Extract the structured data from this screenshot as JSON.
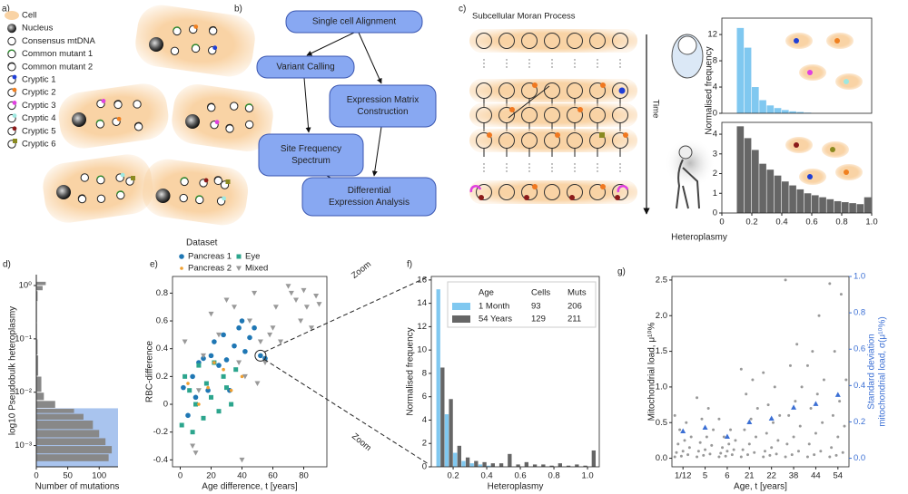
{
  "panel_labels": [
    "a)",
    "b)",
    "c)",
    "d)",
    "e)",
    "f)",
    "g)"
  ],
  "legend_a": {
    "items": [
      {
        "label": "Cell",
        "color": "#f9d3a5"
      },
      {
        "label": "Nucleus",
        "color": "#333333"
      },
      {
        "label": "Consensus mtDNA",
        "color": "#ffffff"
      },
      {
        "label": "Common mutant 1",
        "color": "#2e8b2e"
      },
      {
        "label": "Common mutant 2",
        "color": "#222222"
      },
      {
        "label": "Cryptic 1",
        "color": "#1f3fd6"
      },
      {
        "label": "Cryptic 2",
        "color": "#f08020"
      },
      {
        "label": "Cryptic 3",
        "color": "#e040e0"
      },
      {
        "label": "Cryptic 4",
        "color": "#9fe8e0"
      },
      {
        "label": "Cryptic 5",
        "color": "#8b1a1a"
      },
      {
        "label": "Cryptic 6",
        "color": "#8a8a20"
      }
    ]
  },
  "flowchart_b": {
    "nodes": [
      {
        "lines": [
          "Single cell Alignment"
        ]
      },
      {
        "lines": [
          "Variant Calling"
        ]
      },
      {
        "lines": [
          "Expression Matrix",
          "Construction"
        ]
      },
      {
        "lines": [
          "Site Frequency",
          "Spectrum"
        ]
      },
      {
        "lines": [
          "Differential",
          "Expression Analysis"
        ]
      }
    ]
  },
  "moran_c": {
    "title": "Subcellular Moran Process",
    "time_label": "Time"
  },
  "chart_data": [
    {
      "type": "histogram",
      "color": "#80c8f0",
      "bins": [
        0.1,
        0.15,
        0.2,
        0.25,
        0.3,
        0.35,
        0.4,
        0.45,
        0.5,
        0.55,
        0.6,
        0.65,
        0.7,
        0.75,
        0.8,
        0.85,
        0.9,
        0.95,
        1.0
      ],
      "values": [
        13,
        10,
        4,
        2,
        1.2,
        0.8,
        0.5,
        0.3,
        0.2,
        0.1,
        0,
        0,
        0,
        0,
        0,
        0,
        0,
        0
      ],
      "xlim": [
        0,
        1
      ],
      "ylim": [
        0,
        14.5
      ],
      "yticks": [
        0,
        4,
        8,
        12
      ]
    },
    {
      "type": "histogram",
      "color": "#666666",
      "bins": [
        0.1,
        0.15,
        0.2,
        0.25,
        0.3,
        0.35,
        0.4,
        0.45,
        0.5,
        0.55,
        0.6,
        0.65,
        0.7,
        0.75,
        0.8,
        0.85,
        0.9,
        0.95,
        1.0
      ],
      "values": [
        4.4,
        3.8,
        3.2,
        2.5,
        2.2,
        1.9,
        1.6,
        1.4,
        1.2,
        1.0,
        0.9,
        0.8,
        0.7,
        0.6,
        0.55,
        0.5,
        0.45,
        0.8
      ],
      "xlim": [
        0,
        1
      ],
      "ylim": [
        0,
        4.6
      ],
      "yticks": [
        0,
        1,
        2,
        3,
        4
      ],
      "xticks": [
        0,
        0.2,
        0.4,
        0.6,
        0.8,
        {
          "value": 1,
          "label": "1.0"
        }
      ],
      "xlabel": "Heteroplasmy",
      "ylabel": "Normalised frequency"
    },
    {
      "type": "histogram",
      "orientation": "horizontal",
      "color": "#888888",
      "shade_below": 0.005,
      "shade_color": "#a9c4ee",
      "bins": [
        0.0005,
        0.0007,
        0.001,
        0.0014,
        0.002,
        0.003,
        0.004,
        0.005,
        0.007,
        0.01,
        0.02,
        0.05,
        0.1,
        0.2,
        0.5,
        0.8,
        1.0,
        1.2
      ],
      "values": [
        115,
        120,
        110,
        100,
        90,
        75,
        60,
        30,
        12,
        8,
        3,
        2,
        1,
        1,
        2,
        10,
        15
      ],
      "xlim": [
        0,
        130
      ],
      "xticks": [
        0,
        50,
        100
      ],
      "ylim": [
        0.0004,
        1.6
      ],
      "ylog": true,
      "yticks": [
        {
          "value": 1,
          "label": "10⁰"
        },
        {
          "value": 0.1,
          "label": "10⁻¹"
        },
        {
          "value": 0.01,
          "label": "10⁻²"
        },
        {
          "value": 0.001,
          "label": "10⁻³"
        }
      ],
      "xlabel": "Number of mutations",
      "ylabel": "log10 Pseudobulk heteroplasmy"
    },
    {
      "type": "scatter",
      "legend_title": "Dataset",
      "xlabel": "Age difference, t [years]",
      "ylabel": "RBC-difference",
      "xlim": [
        -5,
        95
      ],
      "ylim": [
        -0.45,
        0.92
      ],
      "xticks": [
        0,
        20,
        40,
        60,
        80
      ],
      "yticks": [
        -0.4,
        -0.2,
        0,
        0.2,
        0.4,
        0.6,
        0.8
      ],
      "annotations": [
        "Zoom",
        "Zoom"
      ],
      "series": [
        {
          "name": "Pancreas 1",
          "color": "#1f77b4",
          "marker": "circle",
          "x": [
            2,
            5,
            8,
            10,
            12,
            15,
            18,
            20,
            22,
            25,
            28,
            30,
            32,
            35,
            38,
            40,
            42,
            45,
            48,
            52,
            55
          ],
          "values": [
            0.12,
            -0.08,
            0.2,
            0.05,
            0.3,
            0.33,
            0.1,
            0.35,
            0.45,
            0.28,
            0.5,
            0.32,
            0.1,
            0.42,
            0.55,
            0.6,
            0.38,
            0.48,
            0.55,
            0.35,
            0.33
          ]
        },
        {
          "name": "Eye",
          "color": "#2ca58d",
          "marker": "square",
          "x": [
            1,
            3,
            6,
            8,
            10,
            12,
            15,
            17,
            20,
            22,
            25,
            28,
            30,
            33,
            36
          ],
          "values": [
            -0.15,
            0.2,
            0.1,
            -0.2,
            0.0,
            0.28,
            -0.1,
            0.15,
            0.05,
            0.3,
            -0.05,
            0.2,
            0.12,
            0.0,
            0.25
          ]
        },
        {
          "name": "Pancreas 2",
          "color": "#f0a030",
          "marker": "dot",
          "x": [
            5,
            12,
            18,
            22,
            28,
            33,
            40
          ],
          "values": [
            0.15,
            0.0,
            0.12,
            0.3,
            0.25,
            0.1,
            0.2
          ]
        },
        {
          "name": "Mixed",
          "color": "#999999",
          "marker": "triangle",
          "x": [
            3,
            8,
            12,
            20,
            25,
            30,
            35,
            38,
            42,
            45,
            48,
            52,
            55,
            60,
            62,
            65,
            70,
            72,
            75,
            78,
            80,
            82,
            85,
            88,
            90,
            10,
            15,
            40,
            50,
            58
          ],
          "values": [
            0.45,
            -0.3,
            0.1,
            0.65,
            0.5,
            0.75,
            0.7,
            0.3,
            0.2,
            0.6,
            0.8,
            0.45,
            0.3,
            0.55,
            0.7,
            0.45,
            0.85,
            0.8,
            0.75,
            0.6,
            0.82,
            0.7,
            0.55,
            0.78,
            0.72,
            -0.35,
            0.35,
            -0.4,
            0.15,
            0.5
          ]
        }
      ]
    },
    {
      "type": "histogram",
      "xlabel": "Heteroplasmy",
      "ylabel": "Normalised frequency",
      "xlim": [
        0.07,
        1.07
      ],
      "ylim": [
        0,
        16.3
      ],
      "xticks": [
        0.2,
        0.4,
        0.6,
        0.8,
        {
          "value": 1,
          "label": "1.0"
        }
      ],
      "yticks": [
        0,
        2,
        4,
        6,
        8,
        10,
        12,
        14,
        16
      ],
      "bins": [
        0.1,
        0.15,
        0.2,
        0.25,
        0.3,
        0.35,
        0.4,
        0.45,
        0.5,
        0.55,
        0.6,
        0.65,
        0.7,
        0.75,
        0.8,
        0.85,
        0.9,
        0.95,
        1.0,
        1.05
      ],
      "legend_headers": [
        "Age",
        "Cells",
        "Muts"
      ],
      "cells": [
        93,
        129
      ],
      "muts": [
        206,
        211
      ],
      "series": [
        {
          "name": "1 Month",
          "color": "#80c8f0",
          "values": [
            15.2,
            4.5,
            1.2,
            0.5,
            0.3,
            0.2,
            0.1,
            0,
            0,
            0,
            0,
            0,
            0,
            0,
            0,
            0,
            0,
            0,
            0
          ]
        },
        {
          "name": "54 Years",
          "color": "#666666",
          "values": [
            8.5,
            5.8,
            1.8,
            0.8,
            0.5,
            0.4,
            0.3,
            0.3,
            1.1,
            0.2,
            0.4,
            0.2,
            0.2,
            0.1,
            0.3,
            0.1,
            0.2,
            0.1,
            1.4
          ]
        }
      ]
    },
    {
      "type": "strip",
      "xlabel": "Age, t [years]",
      "ylabel": "Mitochondrial load, μ¹⁰%",
      "y2label": [
        "Standard deviation",
        "mitochondrial load, σ(μ¹⁰%)"
      ],
      "categories": [
        "1/12",
        "5",
        "6",
        "21",
        "22",
        "38",
        "44",
        "54"
      ],
      "point_color": "#999999",
      "points": [
        [
          0.02,
          0.03,
          0.05,
          0.08,
          0.1,
          0.15,
          0.2,
          0.25,
          0.3,
          0.4,
          0.5,
          0.6
        ],
        [
          0.02,
          0.04,
          0.06,
          0.1,
          0.12,
          0.18,
          0.22,
          0.3,
          0.4,
          0.55,
          0.7,
          0.85
        ],
        [
          0.02,
          0.03,
          0.05,
          0.07,
          0.1,
          0.12,
          0.15,
          0.2,
          0.25,
          0.3,
          0.4,
          0.55
        ],
        [
          0.02,
          0.05,
          0.08,
          0.12,
          0.2,
          0.3,
          0.4,
          0.55,
          0.7,
          0.9,
          1.1,
          1.25
        ],
        [
          0.02,
          0.04,
          0.06,
          0.1,
          0.15,
          0.25,
          0.35,
          0.5,
          0.6,
          0.75,
          1.0,
          1.2
        ],
        [
          0.02,
          0.05,
          0.1,
          0.2,
          0.3,
          0.45,
          0.6,
          0.8,
          1.0,
          1.3,
          1.6,
          2.5
        ],
        [
          0.02,
          0.05,
          0.1,
          0.2,
          0.35,
          0.5,
          0.7,
          0.9,
          1.1,
          1.5,
          2.0,
          1.3
        ],
        [
          0.02,
          0.04,
          0.08,
          0.15,
          0.3,
          0.45,
          0.6,
          0.8,
          1.1,
          1.5,
          2.3,
          2.45
        ]
      ],
      "sd_values": [
        0.15,
        0.17,
        0.12,
        0.2,
        0.22,
        0.28,
        0.3,
        0.35
      ],
      "sd_color": "#3b6fd4",
      "ylim": [
        -0.12,
        2.55
      ],
      "yticks": [
        {
          "value": 0,
          "label": "0.0"
        },
        0.5,
        {
          "value": 1,
          "label": "1.0"
        },
        1.5,
        {
          "value": 2,
          "label": "2.0"
        },
        2.5
      ],
      "y2lim": [
        -0.047,
        1.0
      ],
      "y2ticks": [
        {
          "value": 0,
          "label": "0.0"
        },
        0.2,
        0.4,
        0.6,
        0.8,
        {
          "value": 1,
          "label": "1.0"
        }
      ]
    }
  ]
}
